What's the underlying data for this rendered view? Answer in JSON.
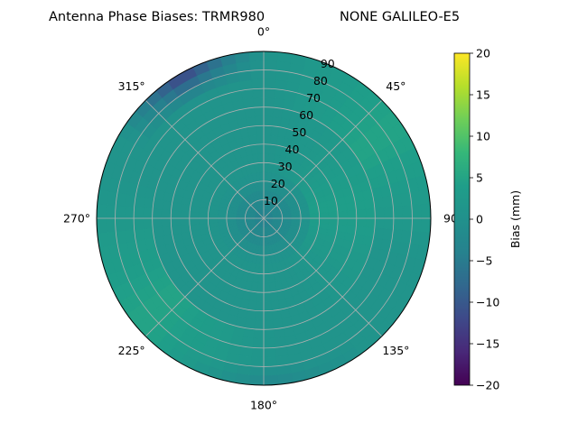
{
  "title_left": "Antenna Phase Biases: TRMR980",
  "title_right": "NONE GALILEO-E5",
  "chart_data": {
    "type": "heatmap",
    "projection": "polar",
    "zero_location": "N",
    "direction": "clockwise",
    "angular_ticks": [
      {
        "deg": 0,
        "label": "0°"
      },
      {
        "deg": 45,
        "label": "45°"
      },
      {
        "deg": 90,
        "label": "90"
      },
      {
        "deg": 135,
        "label": "135°"
      },
      {
        "deg": 180,
        "label": "180°"
      },
      {
        "deg": 225,
        "label": "225°"
      },
      {
        "deg": 270,
        "label": "270°"
      },
      {
        "deg": 315,
        "label": "315°"
      }
    ],
    "radial_ticks": [
      10,
      20,
      30,
      40,
      50,
      60,
      70,
      80,
      90
    ],
    "radial_label_angle_deg": 22.5,
    "rlim": [
      0,
      90
    ],
    "grid": true,
    "colorbar": {
      "label": "Bias (mm)",
      "colormap": "viridis",
      "vmin": -20,
      "vmax": 20,
      "ticks": [
        20,
        15,
        10,
        5,
        0,
        -5,
        -10,
        -15,
        -20
      ],
      "tick_labels": [
        "20",
        "15",
        "10",
        "5",
        "0",
        "−5",
        "−10",
        "−15",
        "−20"
      ]
    },
    "field_bias_mm_approx": {
      "zenith_r0_to_20": -4,
      "ring_r30_to_60_east_sector": 4,
      "ring_r30_to_60_other": 1,
      "ring_r60_to_90_northeast": 5,
      "ring_r60_to_90_southwest": 5,
      "ring_r60_to_90_northwest_edge": -14,
      "ring_r60_to_90_south_edge": -3
    }
  }
}
